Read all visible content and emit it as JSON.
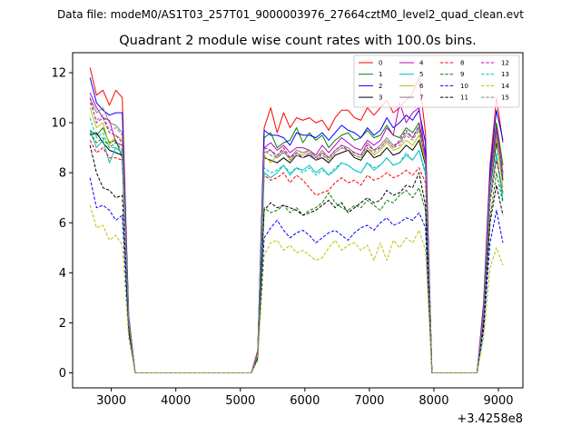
{
  "suptitle": "Data file: modeM0/AS1T03_257T01_9000003976_27664cztM0_level2_quad_clean.evt",
  "chart_data": {
    "type": "line",
    "title": "Quadrant 2 module wise count rates with 100.0s bins.",
    "xlabel": "",
    "ylabel": "",
    "x_offset_label": "+3.4258e8",
    "xlim": [
      2400,
      9380
    ],
    "ylim": [
      -0.6,
      12.8
    ],
    "x_ticks": [
      3000,
      4000,
      5000,
      6000,
      7000,
      8000,
      9000
    ],
    "x_tick_labels": [
      "3000",
      "4000",
      "5000",
      "6000",
      "7000",
      "8000",
      "9000"
    ],
    "y_ticks": [
      0,
      2,
      4,
      6,
      8,
      10,
      12
    ],
    "y_tick_labels": [
      "0",
      "2",
      "4",
      "6",
      "8",
      "10",
      "12"
    ],
    "grid": false,
    "legend_placement": "top-right",
    "legend_columns": 4,
    "x": [
      2670,
      2770,
      2870,
      2970,
      3070,
      3170,
      3270,
      3370,
      3470,
      3570,
      3670,
      3770,
      3870,
      3970,
      4070,
      4170,
      4270,
      4370,
      4470,
      4570,
      4670,
      4770,
      4870,
      4970,
      5070,
      5170,
      5270,
      5370,
      5470,
      5570,
      5670,
      5770,
      5870,
      5970,
      6070,
      6170,
      6270,
      6370,
      6470,
      6570,
      6670,
      6770,
      6870,
      6970,
      7070,
      7170,
      7270,
      7370,
      7470,
      7570,
      7670,
      7770,
      7870,
      7970,
      8070,
      8170,
      8270,
      8370,
      8470,
      8570,
      8670,
      8770,
      8870,
      8970,
      9070
    ],
    "series": [
      {
        "name": "0",
        "color": "#ff0000",
        "dash": "solid",
        "values": [
          12.2,
          11.1,
          11.3,
          10.7,
          11.3,
          11.0,
          2.3,
          0,
          0,
          0,
          0,
          0,
          0,
          0,
          0,
          0,
          0,
          0,
          0,
          0,
          0,
          0,
          0,
          0,
          0,
          0,
          0.9,
          9.8,
          10.6,
          9.6,
          10.4,
          9.8,
          10.2,
          10.1,
          10.2,
          10.0,
          10.1,
          9.7,
          10.2,
          10.5,
          10.5,
          10.2,
          10.1,
          10.6,
          10.3,
          10.6,
          10.9,
          10.4,
          10.6,
          10.9,
          11.2,
          11.8,
          9.6,
          0,
          0,
          0,
          0,
          0,
          0,
          0,
          0,
          2.8,
          8.3,
          11.0,
          9.2
        ]
      },
      {
        "name": "1",
        "color": "#008000",
        "dash": "solid",
        "values": [
          9.7,
          9.5,
          9.8,
          9.2,
          9.3,
          8.6,
          2.0,
          0,
          0,
          0,
          0,
          0,
          0,
          0,
          0,
          0,
          0,
          0,
          0,
          0,
          0,
          0,
          0,
          0,
          0,
          0,
          0.7,
          9.4,
          9.6,
          9.0,
          9.2,
          9.3,
          9.8,
          9.2,
          9.6,
          9.3,
          9.5,
          9.0,
          9.3,
          9.5,
          9.6,
          9.3,
          9.4,
          9.7,
          9.4,
          9.5,
          9.9,
          9.5,
          9.4,
          9.8,
          9.6,
          10.0,
          8.8,
          0,
          0,
          0,
          0,
          0,
          0,
          0,
          0,
          2.5,
          7.8,
          10.0,
          8.3
        ]
      },
      {
        "name": "2",
        "color": "#0000ff",
        "dash": "solid",
        "values": [
          11.8,
          10.8,
          10.5,
          10.3,
          10.4,
          10.4,
          2.2,
          0,
          0,
          0,
          0,
          0,
          0,
          0,
          0,
          0,
          0,
          0,
          0,
          0,
          0,
          0,
          0,
          0,
          0,
          0,
          0.8,
          9.7,
          9.5,
          9.5,
          9.4,
          9.1,
          9.6,
          9.5,
          9.5,
          9.4,
          9.6,
          9.3,
          9.6,
          9.9,
          9.7,
          9.6,
          9.4,
          9.8,
          9.5,
          9.7,
          10.2,
          9.8,
          10.0,
          10.3,
          10.1,
          10.5,
          9.2,
          0,
          0,
          0,
          0,
          0,
          0,
          0,
          0,
          2.7,
          8.1,
          10.5,
          9.3
        ]
      },
      {
        "name": "3",
        "color": "#000000",
        "dash": "solid",
        "values": [
          9.5,
          9.6,
          9.2,
          8.9,
          8.8,
          8.7,
          2.0,
          0,
          0,
          0,
          0,
          0,
          0,
          0,
          0,
          0,
          0,
          0,
          0,
          0,
          0,
          0,
          0,
          0,
          0,
          0,
          0.7,
          8.6,
          8.5,
          8.4,
          8.6,
          8.4,
          8.7,
          8.6,
          8.7,
          8.5,
          8.6,
          8.4,
          8.7,
          8.8,
          8.9,
          8.6,
          8.5,
          8.9,
          8.6,
          8.7,
          9.0,
          8.7,
          8.8,
          9.1,
          8.9,
          9.3,
          8.3,
          0,
          0,
          0,
          0,
          0,
          0,
          0,
          0,
          2.4,
          7.4,
          9.2,
          7.7
        ]
      },
      {
        "name": "4",
        "color": "#bf00bf",
        "dash": "solid",
        "values": [
          11.2,
          10.6,
          10.2,
          10.1,
          9.2,
          9.1,
          2.1,
          0,
          0,
          0,
          0,
          0,
          0,
          0,
          0,
          0,
          0,
          0,
          0,
          0,
          0,
          0,
          0,
          0,
          0,
          0,
          0.8,
          9.0,
          9.2,
          8.9,
          9.1,
          8.8,
          9.0,
          9.0,
          8.9,
          8.7,
          9.1,
          8.8,
          9.1,
          9.4,
          9.2,
          9.0,
          8.9,
          9.3,
          9.1,
          9.3,
          9.8,
          9.5,
          10.8,
          10.0,
          10.4,
          10.6,
          8.6,
          0,
          0,
          0,
          0,
          0,
          0,
          0,
          0,
          2.6,
          7.7,
          9.8,
          8.0
        ]
      },
      {
        "name": "5",
        "color": "#00bfbf",
        "dash": "solid",
        "values": [
          9.7,
          9.0,
          9.3,
          8.4,
          9.0,
          8.8,
          2.0,
          0,
          0,
          0,
          0,
          0,
          0,
          0,
          0,
          0,
          0,
          0,
          0,
          0,
          0,
          0,
          0,
          0,
          0,
          0,
          0.7,
          8.0,
          7.8,
          8.0,
          8.3,
          7.9,
          8.2,
          8.1,
          8.3,
          8.0,
          8.2,
          7.9,
          8.1,
          8.4,
          8.3,
          8.1,
          8.0,
          8.4,
          8.1,
          8.3,
          8.6,
          8.3,
          8.4,
          8.7,
          8.5,
          8.9,
          8.0,
          0,
          0,
          0,
          0,
          0,
          0,
          0,
          0,
          2.3,
          7.0,
          8.7,
          6.9
        ]
      },
      {
        "name": "6",
        "color": "#bfbf00",
        "dash": "solid",
        "values": [
          10.6,
          9.8,
          10.0,
          9.1,
          9.5,
          9.3,
          2.1,
          0,
          0,
          0,
          0,
          0,
          0,
          0,
          0,
          0,
          0,
          0,
          0,
          0,
          0,
          0,
          0,
          0,
          0,
          0,
          0.7,
          8.7,
          8.4,
          8.7,
          8.9,
          8.5,
          8.8,
          8.7,
          8.9,
          8.6,
          8.8,
          8.5,
          8.8,
          9.0,
          8.9,
          8.7,
          8.6,
          9.0,
          8.7,
          8.9,
          9.2,
          8.9,
          9.0,
          9.3,
          9.1,
          9.5,
          8.4,
          0,
          0,
          0,
          0,
          0,
          0,
          0,
          0,
          2.4,
          7.5,
          9.4,
          7.4
        ]
      },
      {
        "name": "7",
        "color": "#808080",
        "dash": "solid",
        "values": [
          11.0,
          10.4,
          10.6,
          10.0,
          9.9,
          9.6,
          2.1,
          0,
          0,
          0,
          0,
          0,
          0,
          0,
          0,
          0,
          0,
          0,
          0,
          0,
          0,
          0,
          0,
          0,
          0,
          0,
          0.8,
          8.8,
          8.9,
          8.6,
          8.8,
          8.6,
          8.9,
          8.8,
          8.9,
          8.6,
          8.9,
          8.6,
          8.9,
          9.1,
          9.0,
          8.8,
          8.7,
          9.2,
          8.9,
          9.1,
          9.4,
          9.1,
          9.2,
          9.6,
          9.4,
          9.8,
          8.5,
          0,
          0,
          0,
          0,
          0,
          0,
          0,
          0,
          2.5,
          7.6,
          9.6,
          7.9
        ]
      },
      {
        "name": "8",
        "color": "#ff0000",
        "dash": "dashed",
        "values": [
          9.3,
          8.8,
          9.0,
          8.6,
          8.6,
          8.5,
          1.9,
          0,
          0,
          0,
          0,
          0,
          0,
          0,
          0,
          0,
          0,
          0,
          0,
          0,
          0,
          0,
          0,
          0,
          0,
          0,
          0.7,
          7.9,
          7.7,
          7.8,
          8.0,
          7.6,
          7.9,
          7.7,
          7.4,
          7.1,
          7.2,
          7.3,
          7.6,
          7.8,
          7.6,
          7.7,
          7.5,
          7.9,
          7.7,
          7.8,
          8.0,
          7.8,
          7.9,
          8.1,
          7.9,
          8.2,
          7.6,
          0,
          0,
          0,
          0,
          0,
          0,
          0,
          0,
          2.2,
          6.8,
          8.5,
          7.2
        ]
      },
      {
        "name": "9",
        "color": "#008000",
        "dash": "dashed",
        "values": [
          9.6,
          9.2,
          9.4,
          9.0,
          9.2,
          8.9,
          2.0,
          0,
          0,
          0,
          0,
          0,
          0,
          0,
          0,
          0,
          0,
          0,
          0,
          0,
          0,
          0,
          0,
          0,
          0,
          0,
          0.6,
          6.6,
          6.4,
          6.5,
          6.7,
          6.4,
          6.6,
          6.3,
          6.5,
          6.6,
          6.8,
          7.2,
          6.8,
          6.6,
          6.5,
          6.7,
          6.6,
          6.9,
          6.7,
          6.5,
          6.9,
          6.8,
          7.1,
          7.3,
          7.0,
          7.4,
          6.5,
          0,
          0,
          0,
          0,
          0,
          0,
          0,
          0,
          2.0,
          6.2,
          8.0,
          6.8
        ]
      },
      {
        "name": "10",
        "color": "#0000ff",
        "dash": "dashed",
        "values": [
          7.8,
          6.6,
          6.7,
          6.5,
          6.1,
          6.3,
          1.6,
          0,
          0,
          0,
          0,
          0,
          0,
          0,
          0,
          0,
          0,
          0,
          0,
          0,
          0,
          0,
          0,
          0,
          0,
          0,
          0.5,
          5.4,
          5.8,
          6.1,
          5.7,
          5.4,
          5.6,
          5.7,
          5.5,
          5.2,
          5.4,
          5.6,
          5.7,
          5.5,
          5.3,
          5.6,
          5.8,
          5.9,
          5.7,
          6.0,
          6.2,
          5.9,
          6.0,
          6.2,
          6.1,
          6.4,
          5.8,
          0,
          0,
          0,
          0,
          0,
          0,
          0,
          0,
          1.7,
          5.2,
          6.5,
          5.2
        ]
      },
      {
        "name": "11",
        "color": "#000000",
        "dash": "dashed",
        "values": [
          9.1,
          8.0,
          7.4,
          7.3,
          7.0,
          7.1,
          1.7,
          0,
          0,
          0,
          0,
          0,
          0,
          0,
          0,
          0,
          0,
          0,
          0,
          0,
          0,
          0,
          0,
          0,
          0,
          0,
          0.6,
          6.5,
          6.8,
          6.6,
          6.7,
          6.6,
          6.5,
          6.3,
          6.4,
          6.5,
          6.7,
          6.9,
          6.6,
          6.8,
          6.4,
          6.6,
          6.8,
          7.0,
          6.8,
          6.9,
          7.3,
          7.1,
          7.2,
          7.5,
          7.4,
          8.0,
          6.7,
          0,
          0,
          0,
          0,
          0,
          0,
          0,
          0,
          2.0,
          6.0,
          7.5,
          6.3
        ]
      },
      {
        "name": "12",
        "color": "#bf00bf",
        "dash": "dashed",
        "values": [
          11.0,
          10.0,
          10.2,
          9.6,
          9.5,
          9.2,
          2.1,
          0,
          0,
          0,
          0,
          0,
          0,
          0,
          0,
          0,
          0,
          0,
          0,
          0,
          0,
          0,
          0,
          0,
          0,
          0,
          0.8,
          9.0,
          8.9,
          8.7,
          9.0,
          8.6,
          8.8,
          8.6,
          8.8,
          8.5,
          8.8,
          8.6,
          8.9,
          9.1,
          8.9,
          8.8,
          8.7,
          9.1,
          8.9,
          9.0,
          9.3,
          9.0,
          9.3,
          9.7,
          9.4,
          9.9,
          8.6,
          0,
          0,
          0,
          0,
          0,
          0,
          0,
          0,
          2.5,
          7.7,
          9.7,
          7.9
        ]
      },
      {
        "name": "13",
        "color": "#00bfbf",
        "dash": "dashed",
        "values": [
          10.2,
          9.4,
          9.6,
          9.0,
          9.0,
          8.8,
          2.0,
          0,
          0,
          0,
          0,
          0,
          0,
          0,
          0,
          0,
          0,
          0,
          0,
          0,
          0,
          0,
          0,
          0,
          0,
          0,
          0.7,
          8.2,
          8.0,
          8.1,
          8.3,
          8.0,
          8.2,
          8.0,
          8.2,
          7.9,
          8.1,
          7.9,
          8.2,
          8.4,
          8.3,
          8.1,
          8.0,
          8.4,
          8.2,
          8.3,
          8.6,
          8.3,
          8.4,
          8.8,
          8.5,
          8.9,
          7.9,
          0,
          0,
          0,
          0,
          0,
          0,
          0,
          0,
          2.3,
          7.1,
          8.8,
          7.1
        ]
      },
      {
        "name": "14",
        "color": "#bfbf00",
        "dash": "dashed",
        "values": [
          6.7,
          5.8,
          5.9,
          5.3,
          5.5,
          5.1,
          1.4,
          0,
          0,
          0,
          0,
          0,
          0,
          0,
          0,
          0,
          0,
          0,
          0,
          0,
          0,
          0,
          0,
          0,
          0,
          0,
          0.5,
          4.7,
          5.2,
          5.3,
          4.9,
          5.1,
          4.8,
          4.9,
          4.7,
          4.5,
          4.6,
          5.0,
          5.3,
          4.9,
          5.1,
          5.2,
          4.9,
          5.1,
          4.5,
          5.2,
          4.5,
          5.3,
          5.0,
          5.4,
          5.2,
          5.7,
          4.9,
          0,
          0,
          0,
          0,
          0,
          0,
          0,
          0,
          1.4,
          4.2,
          5.0,
          4.3
        ]
      },
      {
        "name": "15",
        "color": "#808080",
        "dash": "dashed",
        "values": [
          10.8,
          10.1,
          10.3,
          9.7,
          9.8,
          9.5,
          2.1,
          0,
          0,
          0,
          0,
          0,
          0,
          0,
          0,
          0,
          0,
          0,
          0,
          0,
          0,
          0,
          0,
          0,
          0,
          0,
          0.8,
          8.9,
          8.7,
          8.6,
          8.9,
          8.5,
          8.7,
          8.6,
          8.8,
          8.5,
          8.7,
          8.5,
          8.8,
          9.0,
          8.9,
          8.7,
          8.6,
          9.0,
          8.8,
          9.0,
          9.3,
          9.0,
          9.1,
          9.5,
          9.3,
          9.7,
          8.5,
          0,
          0,
          0,
          0,
          0,
          0,
          0,
          0,
          2.4,
          7.5,
          9.5,
          7.8
        ]
      }
    ]
  }
}
